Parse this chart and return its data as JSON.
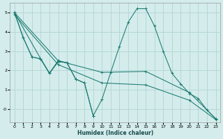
{
  "xlabel": "Humidex (Indice chaleur)",
  "xlim": [
    -0.5,
    23.5
  ],
  "ylim": [
    -0.7,
    5.5
  ],
  "xticks": [
    0,
    1,
    2,
    3,
    4,
    5,
    6,
    7,
    8,
    9,
    10,
    11,
    12,
    13,
    14,
    15,
    16,
    17,
    18,
    19,
    20,
    21,
    22,
    23
  ],
  "yticks": [
    0,
    1,
    2,
    3,
    4,
    5
  ],
  "ytick_labels": [
    "-0",
    "1",
    "2",
    "3",
    "4",
    "5"
  ],
  "background_color": "#d4ecec",
  "grid_color": "#b2d4d4",
  "line_color": "#1a7a6e",
  "line1": {
    "comment": "starts top-left (0,5), goes down to (1,3.7),(2,2.7),(3,2.6),(4,1.85),(5,2.5)",
    "x": [
      0,
      1,
      2,
      3,
      4,
      5
    ],
    "y": [
      5.0,
      3.7,
      2.7,
      2.6,
      1.85,
      2.5
    ]
  },
  "line2": {
    "comment": "starts top-left (0,5), goes to (3,2.6),(4,1.85),(5,2.45),(6,2.4),(7,1.55),(8,1.35),(9,-0.35)",
    "x": [
      0,
      3,
      4,
      5,
      6,
      7,
      8,
      9
    ],
    "y": [
      5.0,
      2.6,
      1.85,
      2.45,
      2.4,
      1.55,
      1.35,
      -0.35
    ]
  },
  "line3": {
    "x": [
      0,
      1,
      2,
      3,
      4,
      5,
      6,
      7,
      8,
      9,
      10,
      11,
      12,
      13,
      14,
      15,
      16,
      17,
      18,
      19,
      20,
      21,
      22,
      23
    ],
    "y": [
      5.0,
      3.7,
      2.7,
      2.6,
      1.85,
      2.5,
      2.4,
      1.55,
      1.35,
      -0.35,
      0.5,
      1.9,
      3.25,
      4.5,
      5.2,
      5.2,
      4.3,
      3.0,
      1.85,
      1.3,
      0.8,
      0.55,
      -0.05,
      -0.5
    ]
  },
  "line4": {
    "x": [
      0,
      5,
      10,
      15,
      20,
      23
    ],
    "y": [
      5.0,
      2.5,
      1.9,
      1.95,
      0.85,
      -0.5
    ]
  },
  "line5": {
    "x": [
      0,
      5,
      10,
      15,
      20,
      23
    ],
    "y": [
      4.9,
      2.3,
      1.35,
      1.25,
      0.45,
      -0.55
    ]
  }
}
